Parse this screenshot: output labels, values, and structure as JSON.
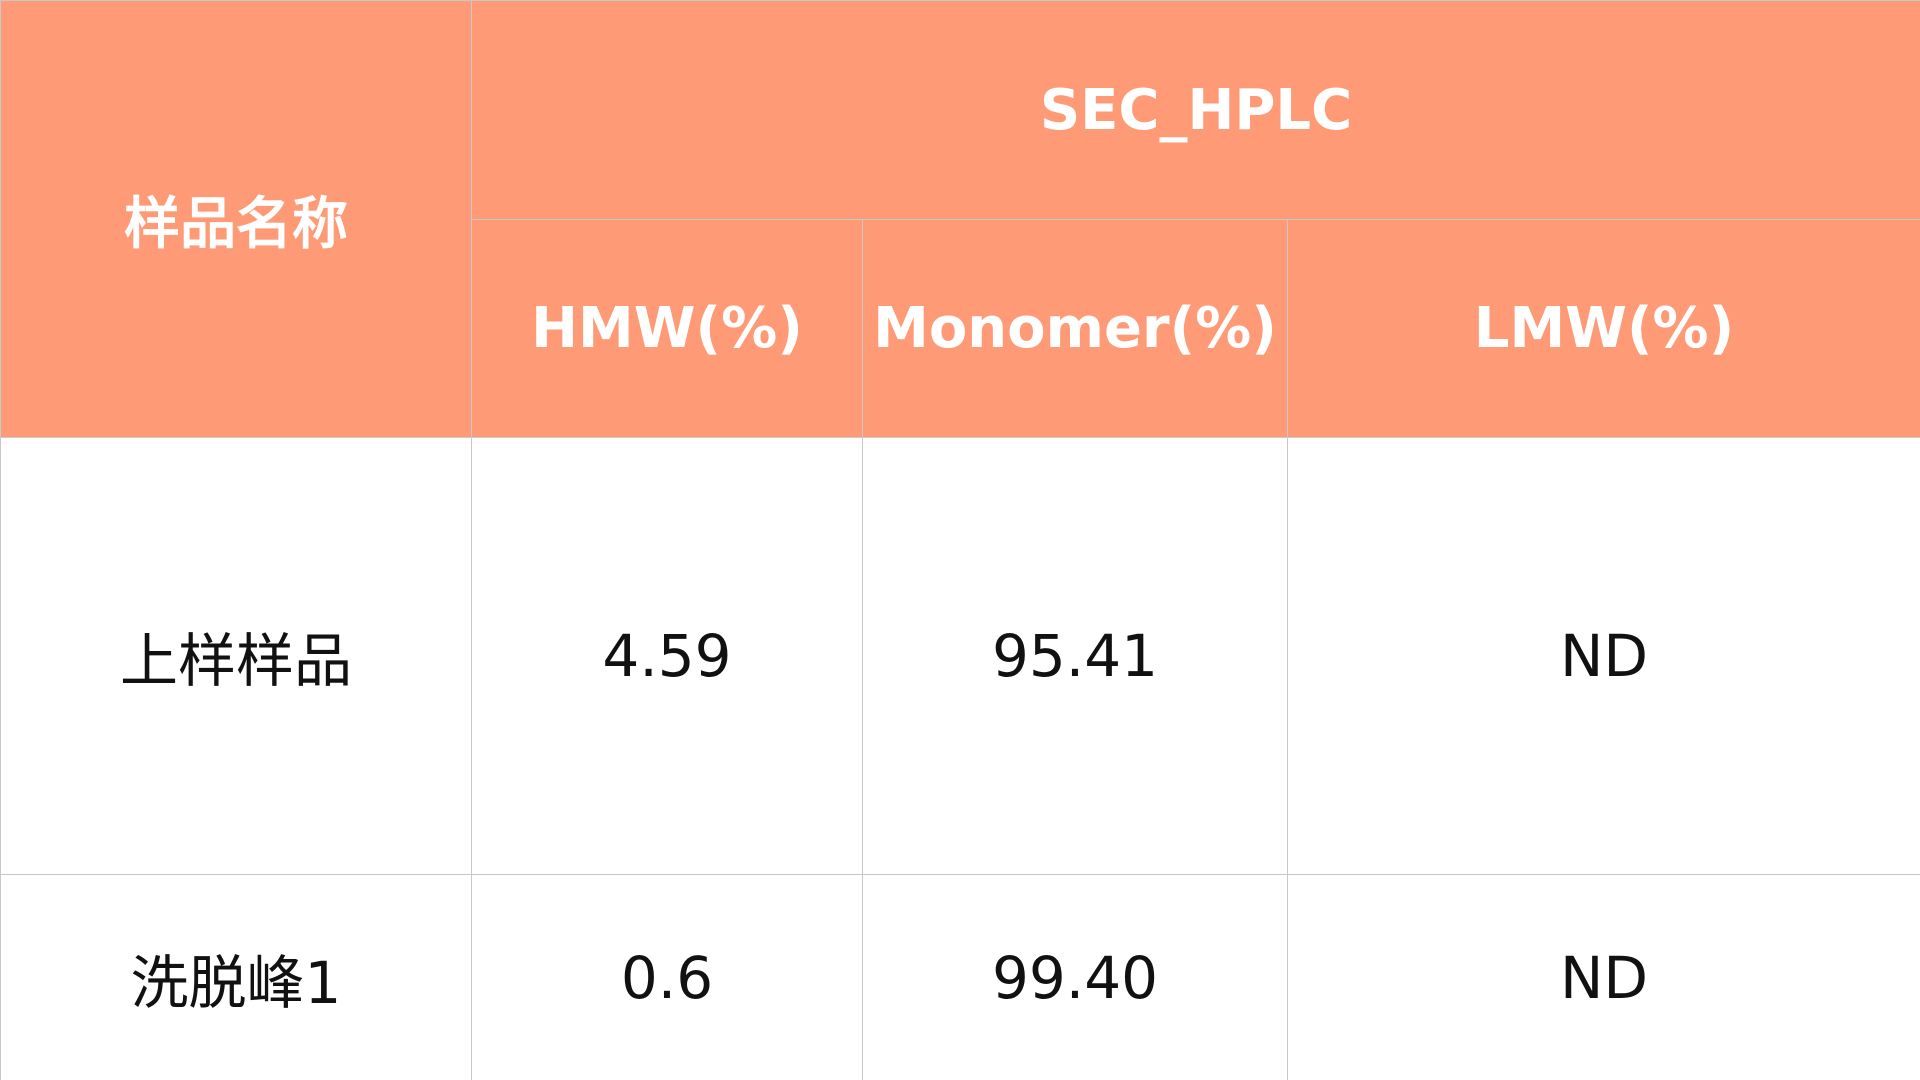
{
  "table": {
    "header": {
      "name": "样品名称",
      "group": "SEC_HPLC",
      "columns": [
        "HMW(%)",
        "Monomer(%)",
        "LMW(%)"
      ]
    },
    "rows": [
      [
        "上样样品",
        "4.59",
        "95.41",
        "ND"
      ],
      [
        "洗脱峰1",
        "0.6",
        "99.40",
        "ND"
      ]
    ]
  }
}
